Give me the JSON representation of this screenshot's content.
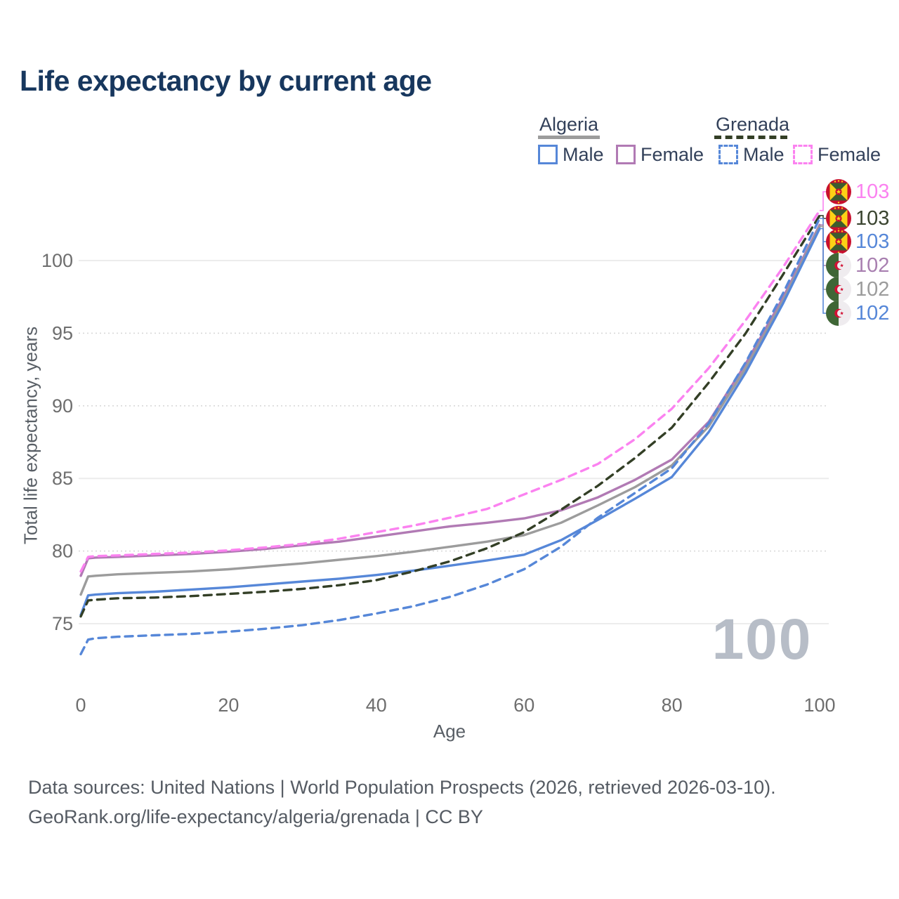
{
  "title": "Life expectancy by current age",
  "watermark": {
    "text": "100"
  },
  "legend": {
    "groups": [
      {
        "label": "Algeria",
        "line_style": "solid",
        "line_color": "#9c9c9c",
        "items": [
          {
            "label": "Male",
            "color": "#5687d8",
            "dashed": false
          },
          {
            "label": "Female",
            "color": "#b17ab4",
            "dashed": false
          }
        ]
      },
      {
        "label": "Grenada",
        "line_style": "dashed",
        "line_color": "#333f26",
        "items": [
          {
            "label": "Male",
            "color": "#5687d8",
            "dashed": true
          },
          {
            "label": "Female",
            "color": "#fb82f0",
            "dashed": true
          }
        ]
      }
    ]
  },
  "axes": {
    "x_title": "Age",
    "y_title": "Total life expectancy, years"
  },
  "footer": {
    "line1": "Data sources: United Nations | World Population Prospects (2026, retrieved 2026-03-10).",
    "line2": "GeoRank.org/life-expectancy/algeria/grenada | CC BY"
  },
  "chart_data": {
    "type": "line",
    "title": "Life expectancy by current age",
    "xlabel": "Age",
    "ylabel": "Total life expectancy, years",
    "xlim": [
      0,
      100
    ],
    "ylim": [
      71.5,
      104.5
    ],
    "x_ticks": [
      0,
      20,
      40,
      60,
      80,
      100
    ],
    "y_ticks": [
      {
        "value": 75,
        "style": "solid"
      },
      {
        "value": 80,
        "style": "dotted"
      },
      {
        "value": 85,
        "style": "solid"
      },
      {
        "value": 90,
        "style": "dotted"
      },
      {
        "value": 95,
        "style": "dotted"
      },
      {
        "value": 100,
        "style": "solid"
      }
    ],
    "legend_position": "top-right",
    "grid": "horizontal-only",
    "ages": [
      0,
      1,
      2,
      5,
      10,
      15,
      20,
      25,
      30,
      35,
      40,
      45,
      50,
      55,
      60,
      65,
      70,
      75,
      80,
      85,
      90,
      95,
      100
    ],
    "series": [
      {
        "name": "Algeria Female",
        "country": "Algeria",
        "sex": "Female",
        "color": "#b17ab4",
        "dash": "solid",
        "end_label": "102",
        "values": [
          78.3,
          79.5,
          79.55,
          79.6,
          79.7,
          79.8,
          79.95,
          80.15,
          80.4,
          80.65,
          81.0,
          81.35,
          81.7,
          81.95,
          82.25,
          82.8,
          83.7,
          84.9,
          86.3,
          88.9,
          92.9,
          97.4,
          102.45
        ]
      },
      {
        "name": "Algeria Both sexes",
        "country": "Algeria",
        "sex": "Both",
        "color": "#9c9c9c",
        "dash": "solid",
        "end_label": "102",
        "values": [
          77.0,
          78.25,
          78.3,
          78.4,
          78.5,
          78.6,
          78.75,
          78.95,
          79.15,
          79.4,
          79.65,
          79.95,
          80.3,
          80.65,
          81.1,
          81.95,
          83.15,
          84.4,
          85.9,
          88.6,
          92.6,
          97.2,
          102.35
        ]
      },
      {
        "name": "Algeria Male",
        "country": "Algeria",
        "sex": "Male",
        "color": "#5687d8",
        "dash": "solid",
        "end_label": "102",
        "values": [
          75.6,
          76.95,
          77.0,
          77.1,
          77.2,
          77.35,
          77.5,
          77.7,
          77.9,
          78.1,
          78.35,
          78.65,
          79.0,
          79.35,
          79.75,
          80.75,
          82.15,
          83.6,
          85.1,
          88.2,
          92.3,
          97.0,
          102.2
        ]
      },
      {
        "name": "Grenada Female",
        "country": "Grenada",
        "sex": "Female",
        "color": "#fb82f0",
        "dash": "dashed",
        "end_label": "103",
        "values": [
          78.6,
          79.6,
          79.65,
          79.7,
          79.8,
          79.9,
          80.05,
          80.25,
          80.5,
          80.85,
          81.3,
          81.75,
          82.3,
          82.9,
          83.9,
          84.9,
          86.0,
          87.7,
          89.8,
          92.6,
          95.9,
          99.5,
          103.45
        ]
      },
      {
        "name": "Grenada Both sexes",
        "country": "Grenada",
        "sex": "Both",
        "color": "#333f26",
        "dash": "dashed",
        "end_label": "103",
        "values": [
          75.5,
          76.6,
          76.65,
          76.75,
          76.8,
          76.9,
          77.05,
          77.2,
          77.4,
          77.65,
          78.0,
          78.6,
          79.3,
          80.2,
          81.3,
          82.85,
          84.5,
          86.4,
          88.5,
          91.6,
          95.0,
          99.0,
          103.1
        ]
      },
      {
        "name": "Grenada Male",
        "country": "Grenada",
        "sex": "Male",
        "color": "#5687d8",
        "dash": "dashed",
        "end_label": "103",
        "values": [
          72.9,
          73.9,
          74.0,
          74.1,
          74.2,
          74.3,
          74.45,
          74.65,
          74.9,
          75.25,
          75.7,
          76.2,
          76.85,
          77.7,
          78.75,
          80.3,
          82.3,
          84.0,
          85.7,
          88.8,
          93.0,
          97.7,
          102.9
        ]
      }
    ],
    "end_labels": [
      {
        "value": "103",
        "color": "#fb82f0",
        "flag": "grenada",
        "series": "Grenada Female"
      },
      {
        "value": "103",
        "color": "#3a4430",
        "flag": "grenada",
        "series": "Grenada Both sexes"
      },
      {
        "value": "103",
        "color": "#5687d8",
        "flag": "grenada",
        "series": "Grenada Male"
      },
      {
        "value": "102",
        "color": "#a87fb0",
        "flag": "algeria",
        "series": "Algeria Female"
      },
      {
        "value": "102",
        "color": "#9c9c9c",
        "flag": "algeria",
        "series": "Algeria Both sexes"
      },
      {
        "value": "102",
        "color": "#5687d8",
        "flag": "algeria",
        "series": "Algeria Male"
      }
    ]
  }
}
